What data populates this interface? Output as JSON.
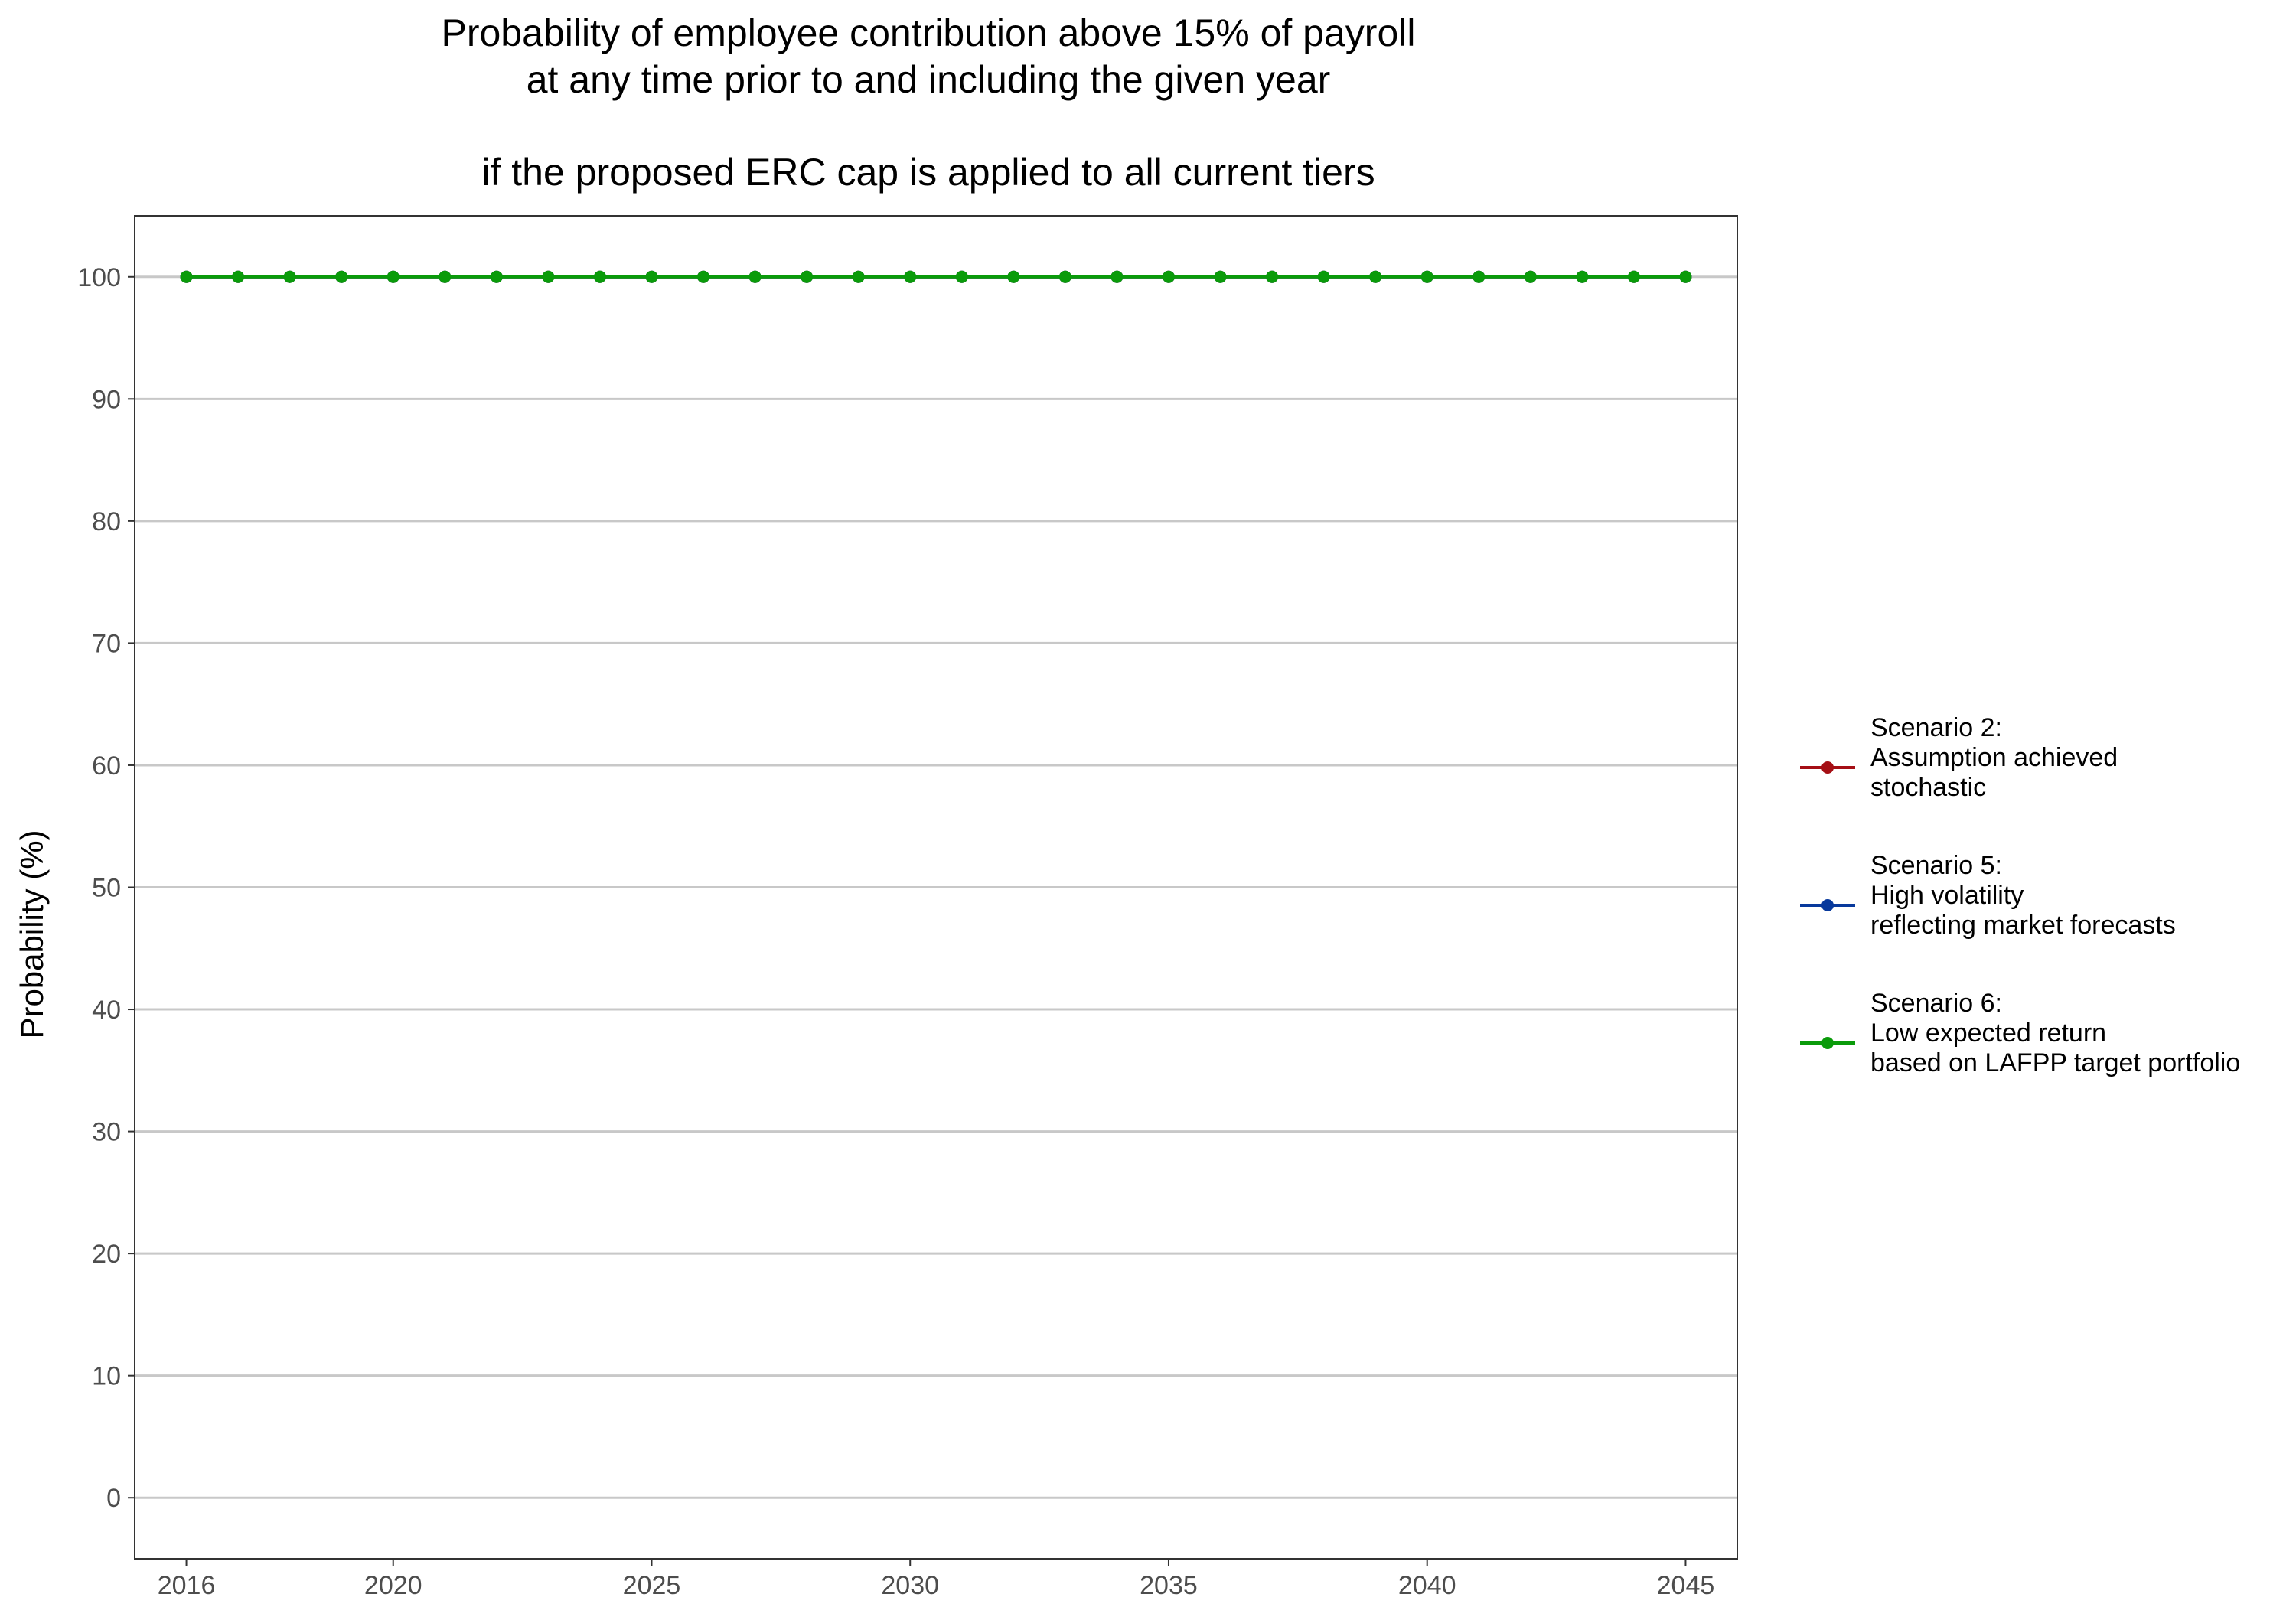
{
  "chart_data": {
    "type": "line",
    "title_lines": [
      "Probability of employee contribution above 15% of payroll",
      "at any time prior to and including the given year",
      "",
      "if the proposed ERC cap is applied to all current tiers"
    ],
    "xlabel": "",
    "ylabel": "Probability (%)",
    "xlim": [
      2015,
      2046
    ],
    "ylim": [
      -5,
      105
    ],
    "x_ticks": [
      2016,
      2020,
      2025,
      2030,
      2035,
      2040,
      2045
    ],
    "y_ticks": [
      0,
      10,
      20,
      30,
      40,
      50,
      60,
      70,
      80,
      90,
      100
    ],
    "grid": "horizontal major",
    "legend_position": "right",
    "x": [
      2016,
      2017,
      2018,
      2019,
      2020,
      2021,
      2022,
      2023,
      2024,
      2025,
      2026,
      2027,
      2028,
      2029,
      2030,
      2031,
      2032,
      2033,
      2034,
      2035,
      2036,
      2037,
      2038,
      2039,
      2040,
      2041,
      2042,
      2043,
      2044,
      2045
    ],
    "series": [
      {
        "name": "Scenario 2:\nAssumption achieved\nstochastic",
        "label_lines": [
          "Scenario 2:",
          "Assumption achieved",
          "stochastic"
        ],
        "color": "#a50f15",
        "values": [
          100,
          100,
          100,
          100,
          100,
          100,
          100,
          100,
          100,
          100,
          100,
          100,
          100,
          100,
          100,
          100,
          100,
          100,
          100,
          100,
          100,
          100,
          100,
          100,
          100,
          100,
          100,
          100,
          100,
          100
        ]
      },
      {
        "name": "Scenario 5:\nHigh volatility\nreflecting market forecasts",
        "label_lines": [
          "Scenario 5:",
          "High volatility",
          "reflecting market forecasts"
        ],
        "color": "#08399c",
        "values": [
          100,
          100,
          100,
          100,
          100,
          100,
          100,
          100,
          100,
          100,
          100,
          100,
          100,
          100,
          100,
          100,
          100,
          100,
          100,
          100,
          100,
          100,
          100,
          100,
          100,
          100,
          100,
          100,
          100,
          100
        ]
      },
      {
        "name": "Scenario 6:\nLow expected return\nbased on LAFPP target portfolio",
        "label_lines": [
          "Scenario 6:",
          "Low expected return",
          "based on LAFPP target portfolio"
        ],
        "color": "#0a9b0a",
        "values": [
          100,
          100,
          100,
          100,
          100,
          100,
          100,
          100,
          100,
          100,
          100,
          100,
          100,
          100,
          100,
          100,
          100,
          100,
          100,
          100,
          100,
          100,
          100,
          100,
          100,
          100,
          100,
          100,
          100,
          100
        ]
      }
    ]
  }
}
